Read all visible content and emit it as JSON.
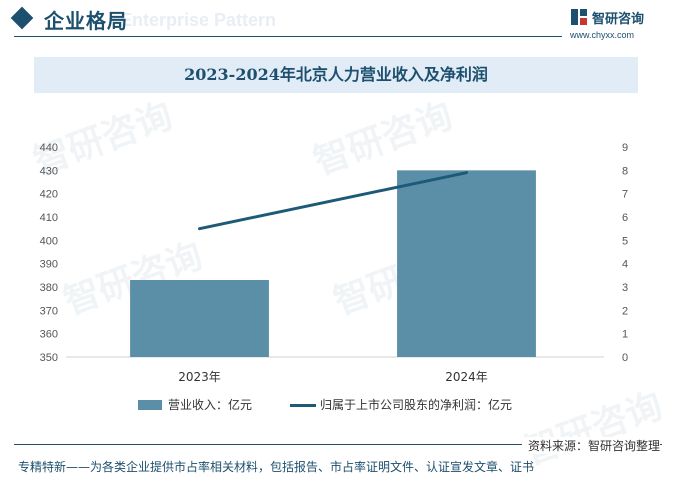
{
  "header": {
    "title": "企业格局",
    "bg_text": "Enterprise Pattern",
    "brand_name": "智研咨询",
    "brand_url": "www.chyxx.com"
  },
  "watermark": "智研咨询",
  "chart_data": {
    "type": "bar",
    "title": "2023-2024年北京人力营业收入及净利润",
    "categories": [
      "2023年",
      "2024年"
    ],
    "series": [
      {
        "name": "营业收入：亿元",
        "type": "bar",
        "axis": "left",
        "values": [
          383,
          430
        ],
        "color": "#5b8fa8"
      },
      {
        "name": "归属于上市公司股东的净利润：亿元",
        "type": "line",
        "axis": "right",
        "values": [
          5.5,
          7.9
        ],
        "color": "#1d5a78"
      }
    ],
    "y_left": {
      "min": 350,
      "max": 440,
      "ticks": [
        "350",
        "360",
        "370",
        "380",
        "390",
        "400",
        "410",
        "420",
        "430",
        "440"
      ]
    },
    "y_right": {
      "min": 0,
      "max": 9,
      "ticks": [
        "0",
        "1",
        "2",
        "3",
        "4",
        "5",
        "6",
        "7",
        "8",
        "9"
      ]
    },
    "grid": false,
    "legend_position": "bottom"
  },
  "legend": {
    "bar_label": "营业收入：亿元",
    "line_label": "归属于上市公司股东的净利润：亿元"
  },
  "source": "资料来源：智研咨询整理",
  "footer": "专精特新——为各类企业提供市占率相关材料，包括报告、市占率证明文件、认证宣发文章、证书"
}
